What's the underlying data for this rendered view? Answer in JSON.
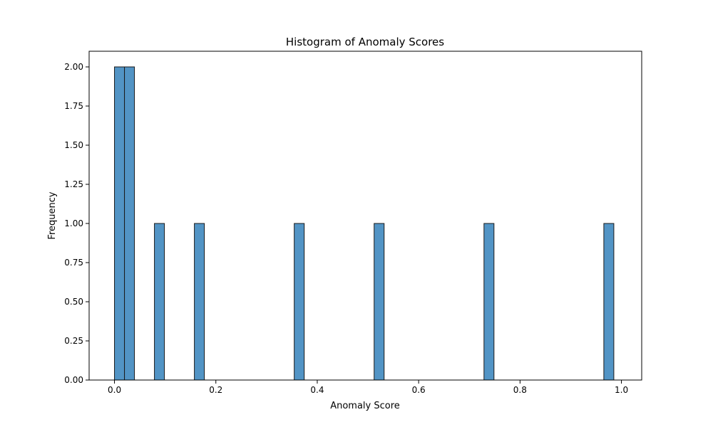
{
  "chart_data": {
    "type": "bar",
    "title": "Histogram of Anomaly Scores",
    "xlabel": "Anomaly Score",
    "ylabel": "Frequency",
    "xlim": [
      -0.05,
      1.04
    ],
    "ylim": [
      0,
      2.1
    ],
    "x_ticks": [
      0.0,
      0.2,
      0.4,
      0.6,
      0.8,
      1.0
    ],
    "x_tick_labels": [
      "0.0",
      "0.2",
      "0.4",
      "0.6",
      "0.8",
      "1.0"
    ],
    "y_ticks": [
      0,
      0.25,
      0.5,
      0.75,
      1.0,
      1.25,
      1.5,
      1.75,
      2.0
    ],
    "y_tick_labels": [
      "0.00",
      "0.25",
      "0.50",
      "0.75",
      "1.00",
      "1.25",
      "1.50",
      "1.75",
      "2.00"
    ],
    "grid": false,
    "bar_color": "#5294c5",
    "bins": [
      {
        "x0": 0.0,
        "x1": 0.0197,
        "count": 2
      },
      {
        "x0": 0.0197,
        "x1": 0.0394,
        "count": 2
      },
      {
        "x0": 0.0788,
        "x1": 0.0985,
        "count": 1
      },
      {
        "x0": 0.1576,
        "x1": 0.1773,
        "count": 1
      },
      {
        "x0": 0.3546,
        "x1": 0.3743,
        "count": 1
      },
      {
        "x0": 0.5122,
        "x1": 0.5319,
        "count": 1
      },
      {
        "x0": 0.7289,
        "x1": 0.7486,
        "count": 1
      },
      {
        "x0": 0.9653,
        "x1": 0.985,
        "count": 1
      }
    ]
  }
}
